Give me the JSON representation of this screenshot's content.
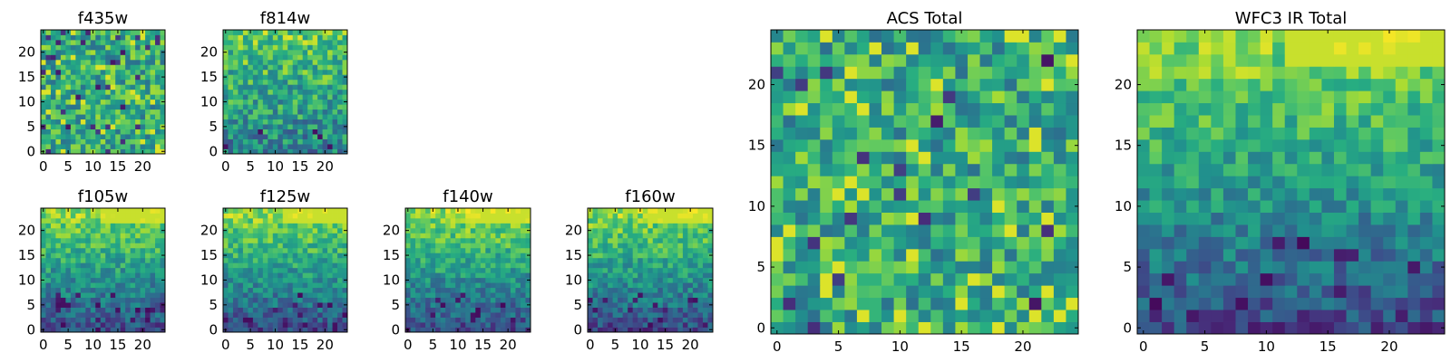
{
  "chart_data": [
    {
      "type": "heatmap",
      "title": "f435w",
      "xlim": [
        0,
        24
      ],
      "ylim": [
        0,
        24
      ],
      "x_ticks": [
        "0",
        "5",
        "10",
        "15",
        "20"
      ],
      "y_ticks": [
        "0",
        "5",
        "10",
        "15",
        "20"
      ],
      "colormap": "viridis",
      "pattern": "uniform"
    },
    {
      "type": "heatmap",
      "title": "f814w",
      "xlim": [
        0,
        24
      ],
      "ylim": [
        0,
        24
      ],
      "x_ticks": [
        "0",
        "5",
        "10",
        "15",
        "20"
      ],
      "y_ticks": [
        "0",
        "5",
        "10",
        "15",
        "20"
      ],
      "colormap": "viridis",
      "pattern": "gradient_top"
    },
    {
      "type": "heatmap",
      "title": "f105w",
      "xlim": [
        0,
        24
      ],
      "ylim": [
        0,
        24
      ],
      "x_ticks": [
        "0",
        "5",
        "10",
        "15",
        "20"
      ],
      "y_ticks": [
        "0",
        "5",
        "10",
        "15",
        "20"
      ],
      "colormap": "viridis",
      "pattern": "gradient_strong"
    },
    {
      "type": "heatmap",
      "title": "f125w",
      "xlim": [
        0,
        24
      ],
      "ylim": [
        0,
        24
      ],
      "x_ticks": [
        "0",
        "5",
        "10",
        "15",
        "20"
      ],
      "y_ticks": [
        "0",
        "5",
        "10",
        "15",
        "20"
      ],
      "colormap": "viridis",
      "pattern": "gradient_strong"
    },
    {
      "type": "heatmap",
      "title": "f140w",
      "xlim": [
        0,
        24
      ],
      "ylim": [
        0,
        24
      ],
      "x_ticks": [
        "0",
        "5",
        "10",
        "15",
        "20"
      ],
      "y_ticks": [
        "0",
        "5",
        "10",
        "15",
        "20"
      ],
      "colormap": "viridis",
      "pattern": "gradient_strong"
    },
    {
      "type": "heatmap",
      "title": "f160w",
      "xlim": [
        0,
        24
      ],
      "ylim": [
        0,
        24
      ],
      "x_ticks": [
        "0",
        "5",
        "10",
        "15",
        "20"
      ],
      "y_ticks": [
        "0",
        "5",
        "10",
        "15",
        "20"
      ],
      "colormap": "viridis",
      "pattern": "gradient_strong"
    },
    {
      "type": "heatmap",
      "title": "ACS Total",
      "xlim": [
        0,
        24
      ],
      "ylim": [
        0,
        24
      ],
      "x_ticks": [
        "0",
        "5",
        "10",
        "15",
        "20"
      ],
      "y_ticks": [
        "0",
        "5",
        "10",
        "15",
        "20"
      ],
      "colormap": "viridis",
      "pattern": "uniform"
    },
    {
      "type": "heatmap",
      "title": "WFC3 IR Total",
      "xlim": [
        0,
        24
      ],
      "ylim": [
        0,
        24
      ],
      "x_ticks": [
        "0",
        "5",
        "10",
        "15",
        "20"
      ],
      "y_ticks": [
        "0",
        "5",
        "10",
        "15",
        "20"
      ],
      "colormap": "viridis",
      "pattern": "gradient_strong"
    }
  ]
}
